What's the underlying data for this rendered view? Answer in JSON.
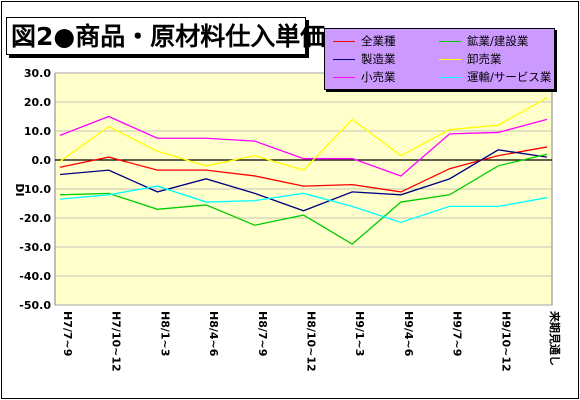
{
  "title": "図2●商品・原材料仕入単価",
  "chart_data": {
    "type": "line",
    "title": "図2●商品・原材料仕入単価",
    "ylabel": "DI",
    "xlabel": "",
    "ylim": [
      -50,
      30
    ],
    "yticks": [
      "30.0",
      "20.0",
      "10.0",
      "0.0",
      "-10.0",
      "-20.0",
      "-30.0",
      "-40.0",
      "-50.0"
    ],
    "categories": [
      "H7/7~9",
      "H7/10~12",
      "H8/1~3",
      "H8/4~6",
      "H8/7~9",
      "H8/10~12",
      "H9/1~3",
      "H9/4~6",
      "H9/7~9",
      "H9/10~12",
      "来期見通し"
    ],
    "grid": true,
    "legend_position": "top-right",
    "series": [
      {
        "name": "全業種",
        "color": "#ff0000",
        "values": [
          -2.5,
          1.0,
          -3.5,
          -3.5,
          -5.5,
          -9.0,
          -8.5,
          -11.0,
          -3.0,
          1.5,
          4.5
        ]
      },
      {
        "name": "製造業",
        "color": "#000080",
        "values": [
          -5.0,
          -3.5,
          -11.0,
          -6.5,
          -11.5,
          -17.5,
          -11.0,
          -12.0,
          -6.5,
          3.5,
          1.0
        ]
      },
      {
        "name": "小売業",
        "color": "#ff00ff",
        "values": [
          8.5,
          15.0,
          7.5,
          7.5,
          6.5,
          0.5,
          0.5,
          -5.5,
          9.0,
          9.5,
          14.0
        ]
      },
      {
        "name": "鉱業/建設業",
        "color": "#00cc00",
        "values": [
          -12.0,
          -11.5,
          -17.0,
          -15.5,
          -22.5,
          -19.0,
          -29.0,
          -14.5,
          -12.0,
          -2.0,
          2.0
        ]
      },
      {
        "name": "卸売業",
        "color": "#ffff00",
        "values": [
          -0.5,
          11.5,
          3.0,
          -2.0,
          1.5,
          -3.5,
          14.0,
          1.5,
          10.5,
          12.0,
          21.5
        ]
      },
      {
        "name": "運輸/サービス業",
        "color": "#00ffff",
        "values": [
          -13.5,
          -12.0,
          -9.0,
          -14.5,
          -14.0,
          -11.5,
          -16.0,
          -21.5,
          -16.0,
          -16.0,
          -13.0
        ]
      }
    ]
  }
}
